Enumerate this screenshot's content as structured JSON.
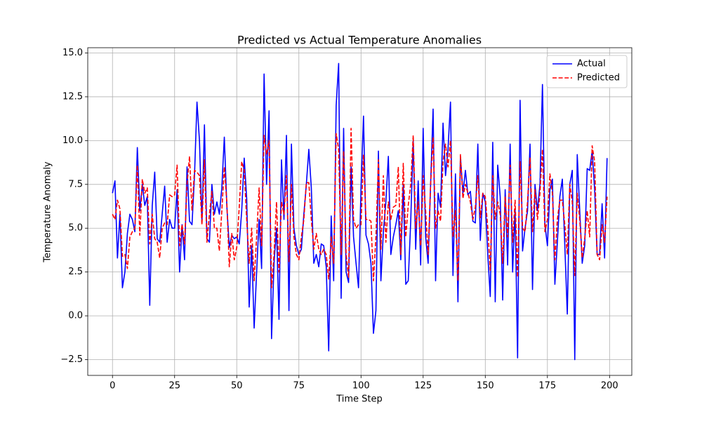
{
  "chart_data": {
    "type": "line",
    "title": "Predicted vs Actual Temperature Anomalies",
    "xlabel": "Time Step",
    "ylabel": "Temperature Anomaly",
    "x": [
      0,
      1,
      2,
      3,
      4,
      5,
      6,
      7,
      8,
      9,
      10,
      11,
      12,
      13,
      14,
      15,
      16,
      17,
      18,
      19,
      20,
      21,
      22,
      23,
      24,
      25,
      26,
      27,
      28,
      29,
      30,
      31,
      32,
      33,
      34,
      35,
      36,
      37,
      38,
      39,
      40,
      41,
      42,
      43,
      44,
      45,
      46,
      47,
      48,
      49,
      50,
      51,
      52,
      53,
      54,
      55,
      56,
      57,
      58,
      59,
      60,
      61,
      62,
      63,
      64,
      65,
      66,
      67,
      68,
      69,
      70,
      71,
      72,
      73,
      74,
      75,
      76,
      77,
      78,
      79,
      80,
      81,
      82,
      83,
      84,
      85,
      86,
      87,
      88,
      89,
      90,
      91,
      92,
      93,
      94,
      95,
      96,
      97,
      98,
      99,
      100,
      101,
      102,
      103,
      104,
      105,
      106,
      107,
      108,
      109,
      110,
      111,
      112,
      113,
      114,
      115,
      116,
      117,
      118,
      119,
      120,
      121,
      122,
      123,
      124,
      125,
      126,
      127,
      128,
      129,
      130,
      131,
      132,
      133,
      134,
      135,
      136,
      137,
      138,
      139,
      140,
      141,
      142,
      143,
      144,
      145,
      146,
      147,
      148,
      149,
      150,
      151,
      152,
      153,
      154,
      155,
      156,
      157,
      158,
      159,
      160,
      161,
      162,
      163,
      164,
      165,
      166,
      167,
      168,
      169,
      170,
      171,
      172,
      173,
      174,
      175,
      176,
      177,
      178,
      179,
      180,
      181,
      182,
      183,
      184,
      185,
      186,
      187,
      188,
      189,
      190,
      191,
      192,
      193,
      194,
      195,
      196,
      197,
      198,
      199
    ],
    "series": [
      {
        "name": "Actual",
        "color": "#0000ff",
        "linestyle": "solid",
        "values": [
          7.0,
          7.7,
          3.3,
          5.8,
          1.6,
          2.5,
          4.7,
          5.8,
          5.5,
          4.8,
          9.6,
          6.0,
          7.5,
          6.3,
          6.8,
          0.6,
          6.3,
          8.2,
          4.4,
          4.2,
          5.8,
          7.4,
          4.2,
          5.5,
          5.0,
          5.0,
          7.2,
          2.5,
          5.2,
          3.2,
          8.5,
          5.4,
          5.2,
          8.0,
          12.2,
          10.0,
          5.3,
          10.9,
          4.4,
          4.2,
          7.5,
          5.8,
          6.5,
          5.8,
          7.3,
          10.2,
          6.3,
          3.9,
          4.6,
          4.4,
          4.5,
          4.1,
          6.0,
          9.0,
          6.7,
          0.5,
          4.0,
          -0.7,
          2.5,
          5.5,
          2.7,
          13.8,
          7.5,
          11.7,
          -1.3,
          3.0,
          5.0,
          -0.2,
          8.9,
          5.5,
          10.3,
          0.3,
          9.8,
          5.0,
          4.0,
          3.5,
          3.8,
          5.8,
          7.5,
          9.5,
          7.3,
          3.0,
          3.5,
          2.8,
          4.1,
          4.0,
          2.8,
          -2.0,
          5.7,
          2.0,
          12.0,
          14.4,
          1.0,
          10.7,
          2.5,
          1.9,
          8.5,
          4.5,
          3.0,
          1.6,
          7.3,
          11.4,
          4.6,
          4.1,
          3.0,
          -1.0,
          0.3,
          9.4,
          2.0,
          4.8,
          6.5,
          9.1,
          3.5,
          4.5,
          5.2,
          6.0,
          3.2,
          7.5,
          1.8,
          2.0,
          5.4,
          10.0,
          3.8,
          7.7,
          2.9,
          10.7,
          4.5,
          3.0,
          7.5,
          11.8,
          2.0,
          7.0,
          6.2,
          11.0,
          8.0,
          9.5,
          12.2,
          2.3,
          8.1,
          0.8,
          9.1,
          7.0,
          8.3,
          6.9,
          7.1,
          5.4,
          5.3,
          9.8,
          4.3,
          7.0,
          6.5,
          3.5,
          1.1,
          9.9,
          0.8,
          8.6,
          6.8,
          0.9,
          7.2,
          2.9,
          9.8,
          2.5,
          6.1,
          -2.4,
          12.3,
          3.7,
          5.0,
          6.0,
          9.8,
          1.5,
          7.5,
          6.0,
          7.5,
          13.2,
          5.2,
          4.0,
          7.2,
          7.8,
          1.8,
          4.2,
          6.8,
          7.8,
          4.0,
          0.1,
          7.5,
          8.3,
          -2.5,
          9.2,
          6.0,
          3.0,
          4.0,
          8.4,
          8.3,
          9.4,
          7.2,
          3.5,
          3.5,
          6.4,
          3.3,
          9.0
        ]
      },
      {
        "name": "Predicted",
        "color": "#ff0000",
        "linestyle": "dashed",
        "values": [
          5.8,
          5.5,
          6.6,
          6.1,
          3.4,
          3.5,
          2.7,
          4.5,
          4.8,
          5.0,
          8.6,
          4.6,
          7.8,
          7.0,
          7.3,
          4.1,
          5.8,
          4.4,
          4.2,
          3.3,
          5.0,
          5.3,
          5.2,
          6.9,
          6.8,
          6.9,
          8.6,
          4.0,
          5.2,
          4.1,
          7.5,
          9.1,
          6.0,
          8.3,
          8.2,
          8.0,
          5.2,
          8.9,
          4.2,
          5.8,
          7.1,
          5.0,
          5.0,
          3.7,
          6.0,
          8.5,
          6.5,
          2.8,
          4.7,
          3.2,
          3.9,
          6.2,
          8.8,
          8.3,
          5.5,
          3.0,
          5.0,
          2.0,
          4.5,
          7.3,
          4.0,
          10.3,
          9.2,
          10.0,
          1.6,
          3.5,
          6.5,
          2.5,
          6.5,
          5.8,
          8.0,
          3.1,
          7.5,
          4.5,
          3.5,
          3.2,
          4.5,
          5.5,
          7.6,
          7.6,
          5.5,
          3.8,
          4.7,
          3.8,
          3.5,
          3.8,
          3.5,
          2.1,
          4.5,
          3.0,
          10.4,
          9.5,
          3.5,
          9.4,
          3.5,
          2.2,
          10.7,
          5.5,
          5.0,
          5.2,
          5.2,
          9.2,
          5.5,
          5.5,
          5.4,
          2.0,
          4.5,
          8.9,
          3.8,
          8.0,
          4.2,
          6.5,
          5.5,
          6.2,
          6.3,
          8.5,
          3.5,
          8.7,
          4.5,
          6.3,
          7.5,
          10.3,
          5.0,
          6.5,
          4.0,
          8.0,
          6.0,
          3.5,
          7.5,
          10.2,
          5.0,
          6.0,
          5.4,
          8.8,
          9.8,
          8.5,
          10.0,
          4.5,
          6.0,
          2.0,
          9.2,
          6.7,
          7.5,
          7.0,
          6.5,
          5.5,
          6.2,
          8.0,
          5.6,
          7.0,
          6.8,
          5.0,
          2.6,
          8.0,
          5.5,
          6.5,
          5.8,
          3.0,
          6.8,
          4.5,
          8.6,
          4.2,
          6.6,
          2.2,
          8.8,
          5.0,
          4.8,
          6.5,
          9.0,
          4.8,
          7.2,
          5.5,
          7.0,
          9.5,
          4.8,
          5.5,
          8.1,
          7.0,
          3.2,
          5.5,
          6.6,
          6.6,
          5.2,
          3.5,
          7.5,
          6.5,
          2.3,
          7.0,
          5.5,
          3.3,
          4.4,
          6.0,
          4.5,
          9.7,
          8.8,
          3.5,
          3.2,
          5.2,
          4.2,
          6.8
        ]
      }
    ],
    "xlim": [
      -9.95,
      208.95
    ],
    "ylim": [
      -3.4,
      15.3
    ],
    "xticks": [
      0,
      25,
      50,
      75,
      100,
      125,
      150,
      175,
      200
    ],
    "yticks": [
      {
        "value": -2.5,
        "label": "−2.5"
      },
      {
        "value": 0,
        "label": "0.0"
      },
      2.5,
      {
        "value": 5,
        "label": "5.0"
      },
      7.5,
      {
        "value": 10,
        "label": "10.0"
      },
      12.5,
      {
        "value": 15,
        "label": "15.0"
      }
    ],
    "grid": true,
    "legend": "upper-right"
  }
}
